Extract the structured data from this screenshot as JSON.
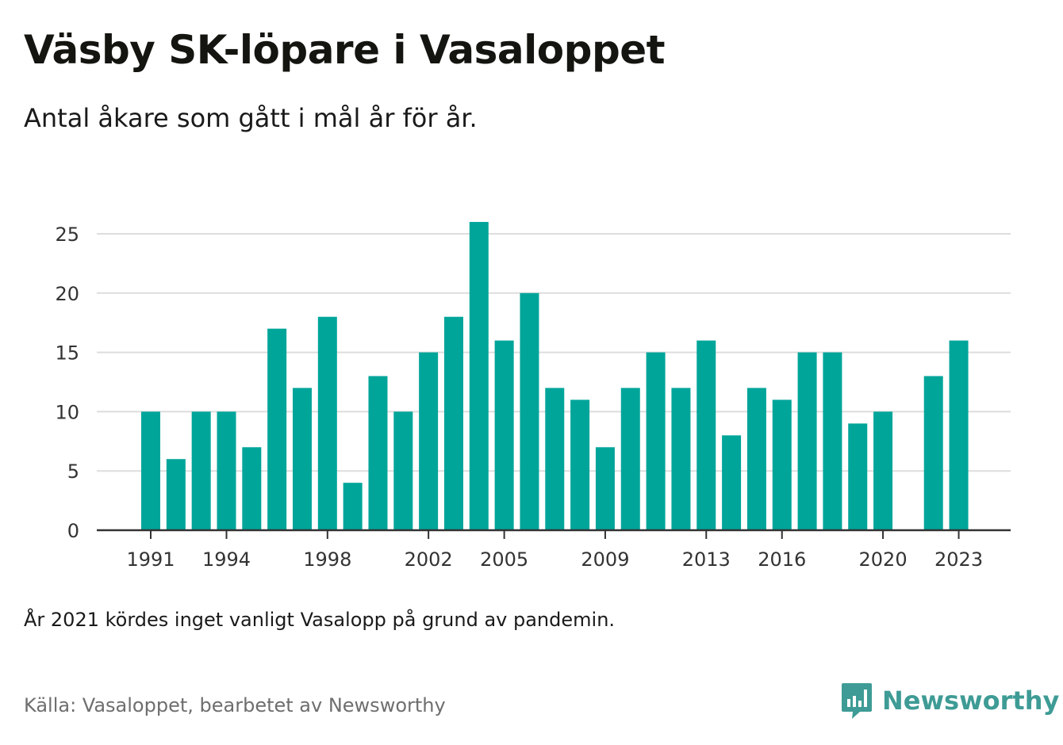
{
  "title": "Väsby SK-löpare i Vasaloppet",
  "subtitle": "Antal åkare som gått i mål år för år.",
  "note": "År 2021 kördes inget vanligt Vasalopp på grund av pandemin.",
  "source": "Källa: Vasaloppet, bearbetet av Newsworthy",
  "logo": {
    "text": "Newsworthy",
    "icon": "newsworthy-chart-bubble-icon",
    "color": "#3e9b95"
  },
  "colors": {
    "bar": "#00a59a",
    "grid": "#dddddd",
    "axis": "#333333"
  },
  "chart_data": {
    "type": "bar",
    "x": [
      1991,
      1992,
      1993,
      1994,
      1995,
      1996,
      1997,
      1998,
      1999,
      2000,
      2001,
      2002,
      2003,
      2004,
      2005,
      2006,
      2007,
      2008,
      2009,
      2010,
      2011,
      2012,
      2013,
      2014,
      2015,
      2016,
      2017,
      2018,
      2019,
      2020,
      2021,
      2022,
      2023
    ],
    "values": [
      10,
      6,
      10,
      10,
      7,
      17,
      12,
      18,
      4,
      13,
      10,
      15,
      18,
      26,
      16,
      20,
      12,
      11,
      7,
      12,
      15,
      12,
      16,
      8,
      12,
      11,
      15,
      15,
      9,
      10,
      null,
      13,
      16
    ],
    "xticks": [
      "1991",
      "1994",
      "1998",
      "2002",
      "2005",
      "2009",
      "2013",
      "2016",
      "2020",
      "2023"
    ],
    "yticks": [
      "0",
      "5",
      "10",
      "15",
      "20",
      "25"
    ],
    "ylim": [
      0,
      27
    ],
    "grid": true,
    "xlabel": "",
    "ylabel": ""
  }
}
